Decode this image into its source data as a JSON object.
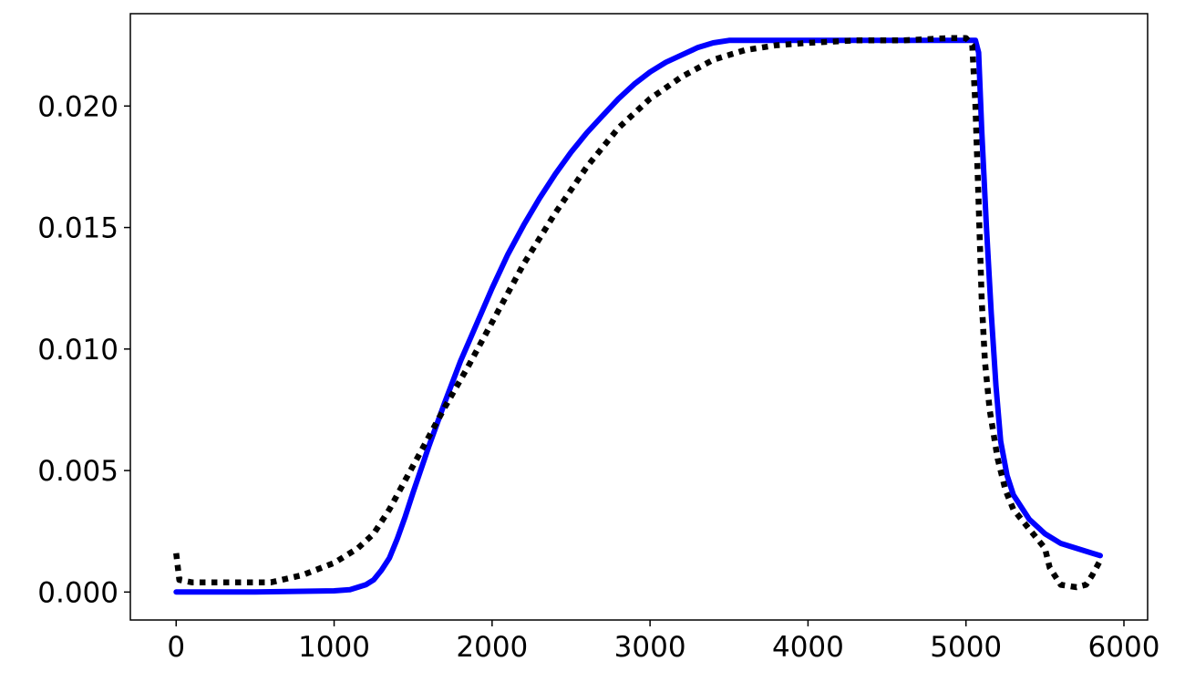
{
  "chart_data": {
    "type": "line",
    "title": "",
    "xlabel": "",
    "ylabel": "",
    "xlim": [
      -290,
      6150
    ],
    "ylim": [
      -0.00115,
      0.0238
    ],
    "xticks": [
      0,
      1000,
      2000,
      3000,
      4000,
      5000,
      6000
    ],
    "xtick_labels": [
      "0",
      "1000",
      "2000",
      "3000",
      "4000",
      "5000",
      "6000"
    ],
    "yticks": [
      0.0,
      0.005,
      0.01,
      0.015,
      0.02
    ],
    "ytick_labels": [
      "0.000",
      "0.005",
      "0.010",
      "0.015",
      "0.020"
    ],
    "grid": false,
    "legend": "none",
    "series": [
      {
        "style": "solid",
        "color": "#0000ff",
        "points": [
          [
            0,
            0.0
          ],
          [
            500,
            0.0
          ],
          [
            1000,
            5e-05
          ],
          [
            1100,
            0.0001
          ],
          [
            1200,
            0.0003
          ],
          [
            1250,
            0.0005
          ],
          [
            1300,
            0.0009
          ],
          [
            1350,
            0.0014
          ],
          [
            1400,
            0.0022
          ],
          [
            1450,
            0.0031
          ],
          [
            1500,
            0.0041
          ],
          [
            1600,
            0.006
          ],
          [
            1700,
            0.0078
          ],
          [
            1800,
            0.0095
          ],
          [
            1900,
            0.011
          ],
          [
            2000,
            0.0125
          ],
          [
            2100,
            0.0139
          ],
          [
            2200,
            0.0151
          ],
          [
            2300,
            0.0162
          ],
          [
            2400,
            0.0172
          ],
          [
            2500,
            0.0181
          ],
          [
            2600,
            0.0189
          ],
          [
            2700,
            0.0196
          ],
          [
            2800,
            0.0203
          ],
          [
            2900,
            0.0209
          ],
          [
            3000,
            0.0214
          ],
          [
            3100,
            0.0218
          ],
          [
            3200,
            0.0221
          ],
          [
            3300,
            0.0224
          ],
          [
            3400,
            0.0226
          ],
          [
            3500,
            0.0227
          ],
          [
            4000,
            0.0227
          ],
          [
            4500,
            0.0227
          ],
          [
            5000,
            0.0227
          ],
          [
            5060,
            0.0227
          ],
          [
            5080,
            0.0222
          ],
          [
            5100,
            0.019
          ],
          [
            5130,
            0.015
          ],
          [
            5160,
            0.0115
          ],
          [
            5190,
            0.0085
          ],
          [
            5220,
            0.0062
          ],
          [
            5260,
            0.0048
          ],
          [
            5300,
            0.004
          ],
          [
            5400,
            0.003
          ],
          [
            5500,
            0.0024
          ],
          [
            5600,
            0.002
          ],
          [
            5700,
            0.0018
          ],
          [
            5800,
            0.0016
          ],
          [
            5850,
            0.0015
          ]
        ]
      },
      {
        "style": "dotted",
        "color": "#000000",
        "points": [
          [
            0,
            0.0016
          ],
          [
            20,
            0.0005
          ],
          [
            100,
            0.0004
          ],
          [
            300,
            0.0004
          ],
          [
            600,
            0.0004
          ],
          [
            800,
            0.0007
          ],
          [
            1000,
            0.0012
          ],
          [
            1150,
            0.0018
          ],
          [
            1250,
            0.0024
          ],
          [
            1350,
            0.0034
          ],
          [
            1450,
            0.0046
          ],
          [
            1550,
            0.0058
          ],
          [
            1700,
            0.0076
          ],
          [
            1850,
            0.0093
          ],
          [
            2000,
            0.0111
          ],
          [
            2200,
            0.0135
          ],
          [
            2400,
            0.0156
          ],
          [
            2600,
            0.0175
          ],
          [
            2800,
            0.0191
          ],
          [
            3000,
            0.0203
          ],
          [
            3200,
            0.0212
          ],
          [
            3400,
            0.0219
          ],
          [
            3600,
            0.0223
          ],
          [
            3800,
            0.0225
          ],
          [
            4000,
            0.0226
          ],
          [
            4300,
            0.0227
          ],
          [
            4600,
            0.0227
          ],
          [
            4900,
            0.0228
          ],
          [
            5000,
            0.0228
          ],
          [
            5040,
            0.0225
          ],
          [
            5060,
            0.02
          ],
          [
            5080,
            0.016
          ],
          [
            5100,
            0.012
          ],
          [
            5120,
            0.0095
          ],
          [
            5150,
            0.0075
          ],
          [
            5200,
            0.0055
          ],
          [
            5250,
            0.0042
          ],
          [
            5300,
            0.0034
          ],
          [
            5400,
            0.0026
          ],
          [
            5500,
            0.0018
          ],
          [
            5530,
            0.001
          ],
          [
            5600,
            0.0003
          ],
          [
            5700,
            0.0002
          ],
          [
            5760,
            0.0003
          ],
          [
            5800,
            0.0007
          ],
          [
            5850,
            0.0013
          ]
        ]
      }
    ]
  }
}
